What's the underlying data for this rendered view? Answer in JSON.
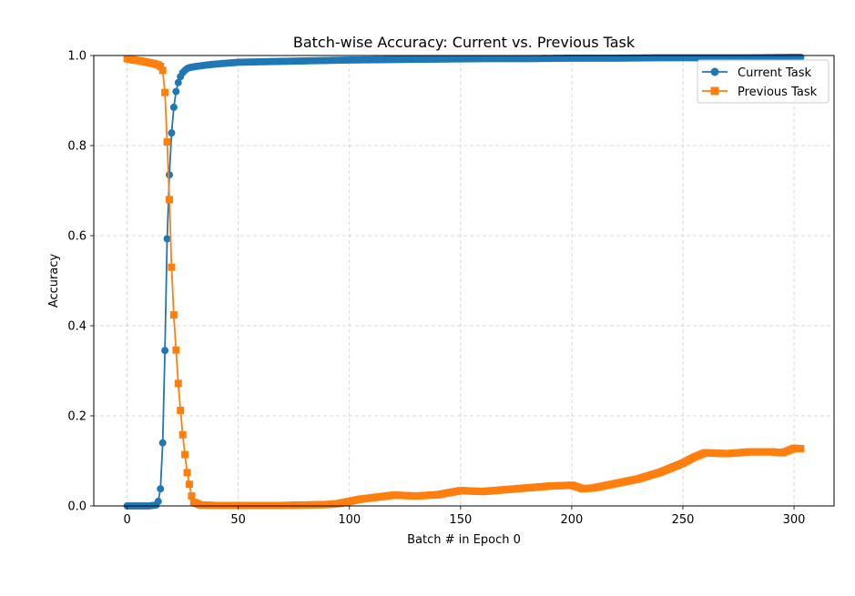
{
  "chart_data": {
    "type": "line",
    "title": "Batch-wise Accuracy: Current vs. Previous Task",
    "xlabel": "Batch # in Epoch 0",
    "ylabel": "Accuracy",
    "xlim": [
      -15,
      318
    ],
    "ylim": [
      0,
      1.0
    ],
    "xticks": [
      0,
      50,
      100,
      150,
      200,
      250,
      300
    ],
    "xtick_labels": [
      "0",
      "50",
      "100",
      "150",
      "200",
      "250",
      "300"
    ],
    "yticks": [
      0.0,
      0.2,
      0.4,
      0.6,
      0.8,
      1.0
    ],
    "ytick_labels": [
      "0.0",
      "0.2",
      "0.4",
      "0.6",
      "0.8",
      "1.0"
    ],
    "grid": true,
    "legend_position": "top-right",
    "series": [
      {
        "name": "Current Task",
        "color": "#1f77b4",
        "marker": "circle",
        "x": [
          0,
          5,
          10,
          13,
          14,
          15,
          16,
          17,
          18,
          19,
          20,
          21,
          22,
          23,
          24,
          25,
          26,
          27,
          28,
          30,
          33,
          36,
          40,
          45,
          50,
          60,
          70,
          80,
          90,
          100,
          120,
          140,
          160,
          180,
          200,
          220,
          240,
          260,
          280,
          300,
          303
        ],
        "y": [
          0.0,
          0.0,
          0.0,
          0.002,
          0.01,
          0.038,
          0.14,
          0.345,
          0.593,
          0.735,
          0.828,
          0.885,
          0.92,
          0.94,
          0.953,
          0.962,
          0.967,
          0.971,
          0.973,
          0.975,
          0.977,
          0.979,
          0.981,
          0.983,
          0.985,
          0.986,
          0.987,
          0.988,
          0.989,
          0.99,
          0.991,
          0.992,
          0.993,
          0.993,
          0.994,
          0.994,
          0.995,
          0.995,
          0.995,
          0.996,
          0.996
        ]
      },
      {
        "name": "Previous Task",
        "color": "#ff7f0e",
        "marker": "square",
        "x": [
          0,
          3,
          6,
          9,
          12,
          14,
          15,
          16,
          17,
          18,
          19,
          20,
          21,
          22,
          23,
          24,
          25,
          26,
          27,
          28,
          29,
          30,
          33,
          40,
          50,
          60,
          70,
          80,
          90,
          95,
          100,
          105,
          110,
          120,
          130,
          140,
          150,
          160,
          170,
          180,
          190,
          200,
          205,
          210,
          220,
          230,
          240,
          245,
          250,
          255,
          260,
          270,
          280,
          290,
          295,
          300,
          303
        ],
        "y": [
          0.993,
          0.99,
          0.988,
          0.985,
          0.982,
          0.979,
          0.976,
          0.967,
          0.918,
          0.808,
          0.68,
          0.53,
          0.424,
          0.346,
          0.272,
          0.212,
          0.158,
          0.114,
          0.074,
          0.048,
          0.022,
          0.008,
          0.002,
          0.001,
          0.001,
          0.001,
          0.001,
          0.002,
          0.003,
          0.005,
          0.01,
          0.015,
          0.018,
          0.024,
          0.022,
          0.025,
          0.034,
          0.032,
          0.036,
          0.04,
          0.044,
          0.046,
          0.038,
          0.04,
          0.05,
          0.06,
          0.075,
          0.085,
          0.095,
          0.108,
          0.118,
          0.116,
          0.12,
          0.12,
          0.118,
          0.128,
          0.127
        ]
      }
    ]
  }
}
